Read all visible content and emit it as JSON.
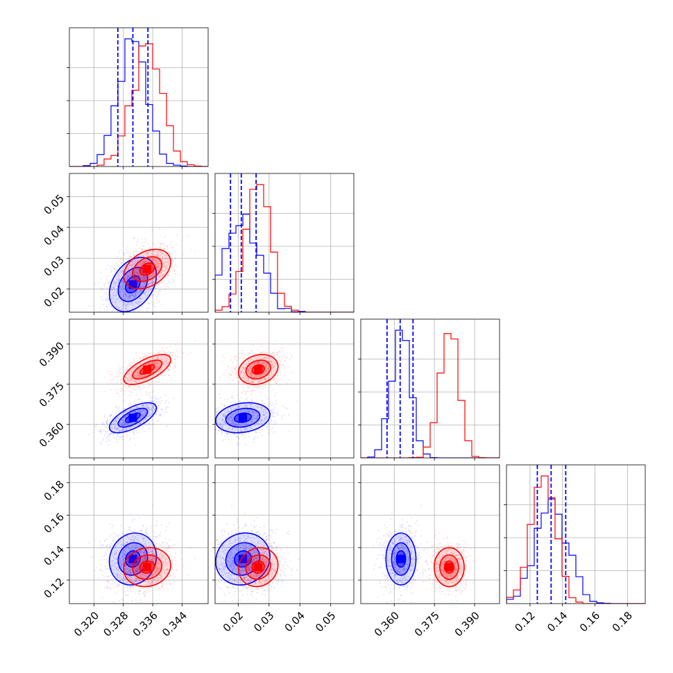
{
  "chart_data": {
    "type": "corner",
    "colors": {
      "blue": "#0000ff",
      "red": "#ff0000"
    },
    "series": [
      {
        "color": "blue",
        "mean": [
          0.3306,
          0.0215,
          0.3625,
          0.133
        ],
        "sd": [
          0.004,
          0.0055,
          0.0035,
          0.01
        ],
        "corr": [
          [
            1,
            0.35,
            0.65,
            0.1
          ],
          [
            0.35,
            1,
            0.2,
            0.1
          ],
          [
            0.65,
            0.2,
            1,
            0.0
          ],
          [
            0.1,
            0.1,
            0.0,
            1
          ]
        ]
      },
      {
        "color": "red",
        "mean": [
          0.3345,
          0.0265,
          0.3805,
          0.128
        ],
        "sd": [
          0.004,
          0.004,
          0.0035,
          0.0075
        ],
        "corr": [
          [
            1,
            0.35,
            0.65,
            0.1
          ],
          [
            0.35,
            1,
            0.2,
            0.1
          ],
          [
            0.65,
            0.2,
            1,
            0.0
          ],
          [
            0.1,
            0.1,
            0.0,
            1
          ]
        ]
      }
    ],
    "quantiles": [
      [
        0.3265,
        0.3306,
        0.3347
      ],
      [
        0.0175,
        0.021,
        0.0258
      ],
      [
        0.3573,
        0.3622,
        0.367
      ],
      [
        0.1245,
        0.133,
        0.142
      ]
    ],
    "ranges": [
      [
        0.3133,
        0.3511
      ],
      [
        0.0125,
        0.0575
      ],
      [
        0.3475,
        0.3993
      ],
      [
        0.1055,
        0.191
      ]
    ],
    "ticks": [
      {
        "values": [
          0.32,
          0.328,
          0.336,
          0.344
        ],
        "labels": [
          "0.320",
          "0.328",
          "0.336",
          "0.344"
        ]
      },
      {
        "values": [
          0.02,
          0.03,
          0.04,
          0.05
        ],
        "labels": [
          "0.02",
          "0.03",
          "0.04",
          "0.05"
        ]
      },
      {
        "values": [
          0.36,
          0.375,
          0.39
        ],
        "labels": [
          "0.360",
          "0.375",
          "0.390"
        ]
      },
      {
        "values": [
          0.12,
          0.14,
          0.16,
          0.18
        ],
        "labels": [
          "0.12",
          "0.14",
          "0.16",
          "0.18"
        ]
      }
    ],
    "grid": true,
    "legend": "none",
    "histogram_bins": 20
  }
}
